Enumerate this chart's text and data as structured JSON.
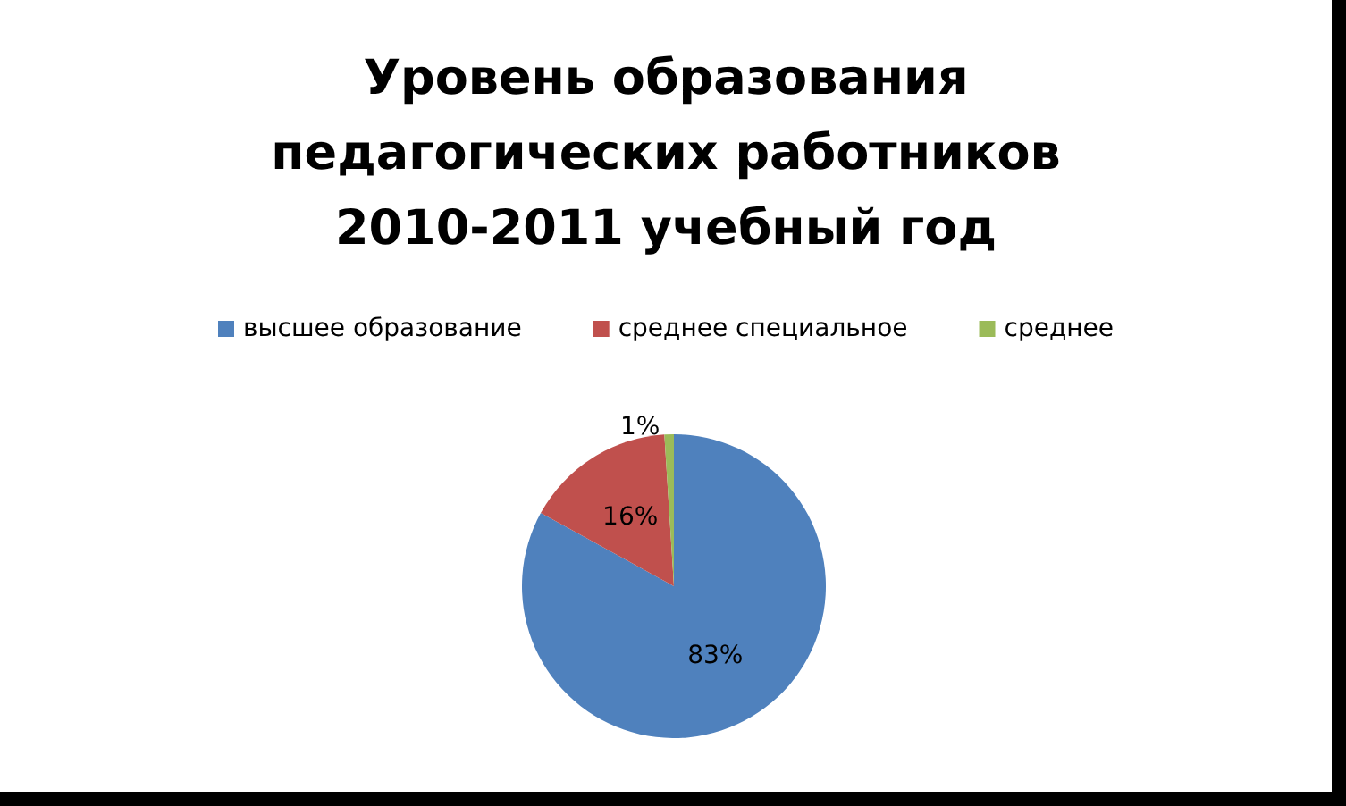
{
  "chart_data": {
    "type": "pie",
    "title": "Уровень образования\nпедагогических работников\n2010-2011 учебный год",
    "categories": [
      "высшее образование",
      "среднее специальное",
      "среднее"
    ],
    "values": [
      83,
      16,
      1
    ],
    "colors": [
      "#4f81bd",
      "#c0504d",
      "#9bbb59"
    ],
    "value_labels": [
      "83%",
      "16%",
      "1%"
    ],
    "legend": "top"
  }
}
